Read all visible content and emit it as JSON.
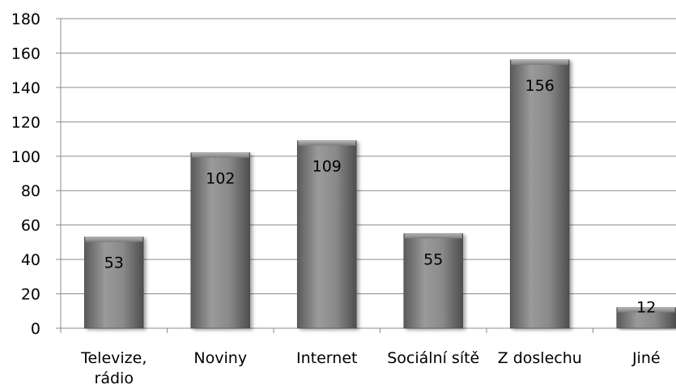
{
  "chart_data": {
    "type": "bar",
    "title": "",
    "xlabel": "",
    "ylabel": "",
    "categories": [
      [
        "Televize,",
        "rádio"
      ],
      [
        "Noviny"
      ],
      [
        "Internet"
      ],
      [
        "Sociální sítě"
      ],
      [
        "Z doslechu"
      ],
      [
        "Jiné"
      ]
    ],
    "values": [
      53,
      102,
      109,
      55,
      156,
      12
    ],
    "ylim": [
      0,
      180
    ],
    "yticks": [
      0,
      20,
      40,
      60,
      80,
      100,
      120,
      140,
      160,
      180
    ],
    "grid": true,
    "legend": "none",
    "bar_color": "#7a7a7a"
  }
}
